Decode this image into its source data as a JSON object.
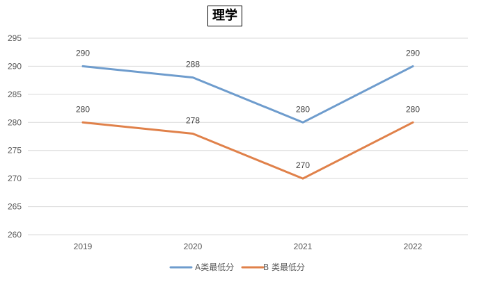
{
  "chart_data": {
    "type": "line",
    "title": "理学",
    "categories": [
      "2019",
      "2020",
      "2021",
      "2022"
    ],
    "series": [
      {
        "name": "A类最低分",
        "values": [
          290,
          288,
          280,
          290
        ],
        "labels": [
          "290",
          "288",
          "280",
          "290"
        ],
        "color": "#6E9CCD"
      },
      {
        "name": "B 类最低分",
        "values": [
          280,
          278,
          270,
          280
        ],
        "labels": [
          "280",
          "278",
          "270",
          "280"
        ],
        "color": "#E0814A"
      }
    ],
    "ylim": [
      260,
      295
    ],
    "yticks": [
      "260",
      "265",
      "270",
      "275",
      "280",
      "285",
      "290",
      "295"
    ],
    "xlabel": "",
    "ylabel": "",
    "grid": true,
    "legend_position": "bottom",
    "gridline_color": "#D9D9D9"
  }
}
